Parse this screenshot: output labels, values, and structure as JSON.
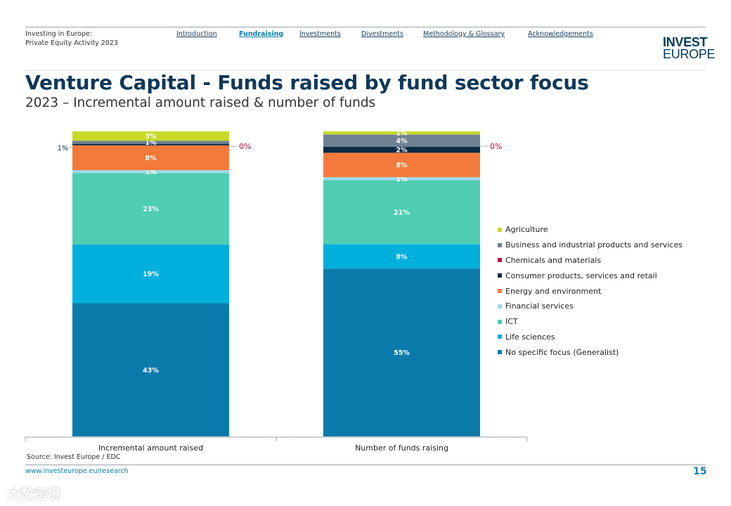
{
  "header": {
    "title_line1": "Investing in Europe:",
    "title_line2": "Private Equity Activity 2023",
    "nav": [
      {
        "label": "Introduction",
        "active": false
      },
      {
        "label": "Fundraising",
        "active": true
      },
      {
        "label": "Investments",
        "active": false
      },
      {
        "label": "Divestments",
        "active": false
      },
      {
        "label": "Methodology & Glossary",
        "active": false
      },
      {
        "label": "Acknowledgements",
        "active": false
      }
    ],
    "logo_line1": "INVEST",
    "logo_line2": "EUROPE"
  },
  "title": "Venture Capital - Funds raised by fund sector focus",
  "subtitle": "2023 – Incremental amount raised & number of funds",
  "chart_data": {
    "type": "bar",
    "stacked": true,
    "percent": true,
    "categories": [
      "Incremental amount raised",
      "Number of funds raising"
    ],
    "series": [
      {
        "name": "No specific focus (Generalist)",
        "color": "#0a7aab",
        "values": [
          43,
          55
        ],
        "labels": [
          "43%",
          "55%"
        ]
      },
      {
        "name": "Life sciences",
        "color": "#00b0dc",
        "values": [
          19,
          8
        ],
        "labels": [
          "19%",
          "8%"
        ]
      },
      {
        "name": "ICT",
        "color": "#4ecdb3",
        "values": [
          23,
          21
        ],
        "labels": [
          "23%",
          "21%"
        ]
      },
      {
        "name": "Financial services",
        "color": "#9fd9e6",
        "values": [
          1,
          1
        ],
        "labels": [
          "1%",
          "1%"
        ]
      },
      {
        "name": "Energy and environment",
        "color": "#f47a3b",
        "values": [
          8,
          8
        ],
        "labels": [
          "8%",
          "8%"
        ]
      },
      {
        "name": "Consumer products, services and retail",
        "color": "#0a2b43",
        "values": [
          0.5,
          2
        ],
        "labels": [
          "",
          "2%"
        ]
      },
      {
        "name": "Chemicals and materials",
        "color": "#c5123b",
        "values": [
          0,
          0
        ],
        "labels": [
          "0%",
          "0%"
        ]
      },
      {
        "name": "Business and industrial products and services",
        "color": "#6f8293",
        "values": [
          1,
          4
        ],
        "labels": [
          "1%",
          "4%"
        ]
      },
      {
        "name": "Agriculture",
        "color": "#c6d928",
        "values": [
          3,
          1
        ],
        "labels": [
          "3%",
          "1%"
        ]
      }
    ],
    "outside_labels": [
      "1%"
    ],
    "ylim": [
      0,
      100
    ],
    "legend_position": "right"
  },
  "source": "Source: Invest Europe / EDC",
  "footer": {
    "url": "www.investeurope.eu/research",
    "page": "15"
  },
  "watermark": "大数跨境"
}
